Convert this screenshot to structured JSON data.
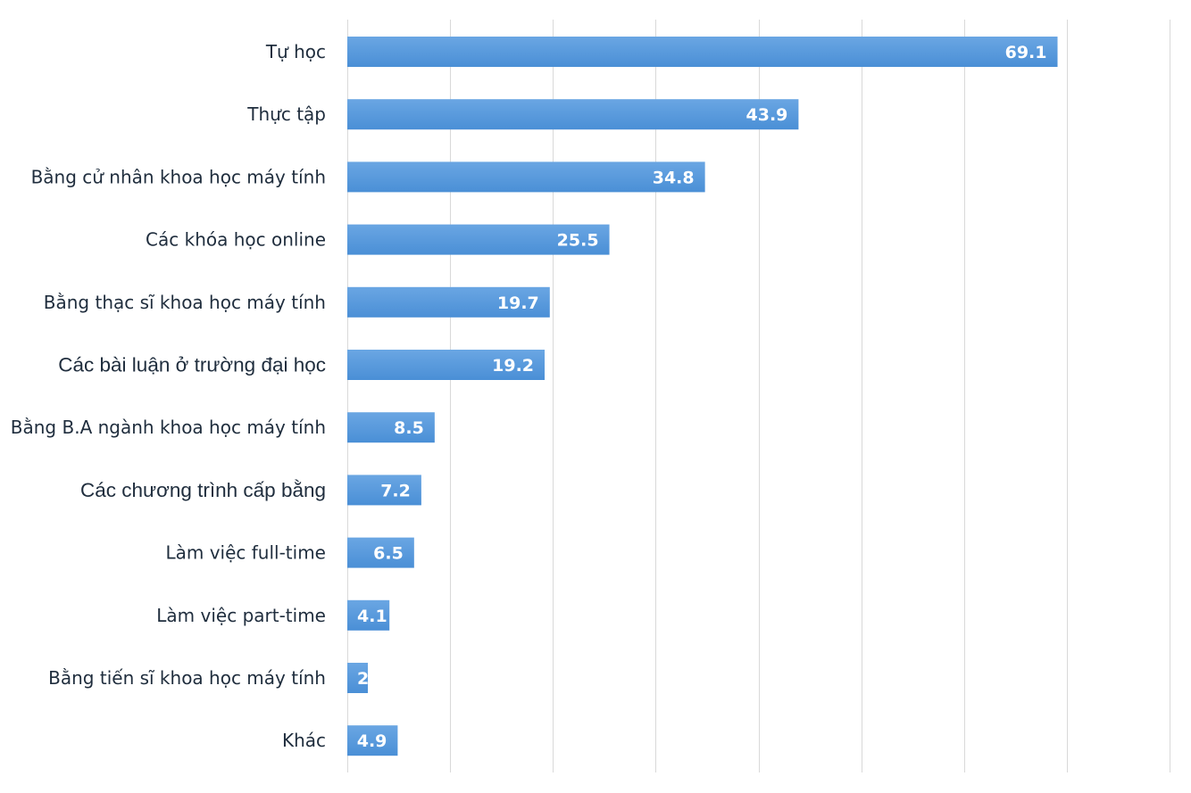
{
  "chart_data": {
    "type": "bar",
    "orientation": "horizontal",
    "categories": [
      "Tự học",
      "Thực tập",
      "Bằng cử nhân khoa học máy tính",
      "Các khóa học online",
      "Bằng thạc sĩ khoa học máy tính",
      "Các bài luận ở trường đại học",
      "Bằng B.A ngành khoa học máy tính",
      "Các chương trình cấp bằng",
      "Làm việc full-time",
      "Làm việc part-time",
      "Bằng tiến sĩ khoa học máy tính",
      "Khác"
    ],
    "values": [
      69.1,
      43.9,
      34.8,
      25.5,
      19.7,
      19.2,
      8.5,
      7.2,
      6.5,
      4.1,
      2,
      4.9
    ],
    "value_labels": [
      "69.1",
      "43.9",
      "34.8",
      "25.5",
      "19.7",
      "19.2",
      "8.5",
      "7.2",
      "6.5",
      "4.1",
      "2",
      "4.9"
    ],
    "xlim": [
      0,
      80
    ],
    "grid_step": 10,
    "grid": true,
    "axis_tick_labels_shown": false,
    "title": "",
    "xlabel": "",
    "ylabel": "",
    "bar_color": "#4a8fd6",
    "bar_color_light": "#6aa6e3",
    "value_label_color": "#ffffff",
    "category_label_color": "#1f2d3d",
    "grid_color": "#d9d9d9"
  }
}
